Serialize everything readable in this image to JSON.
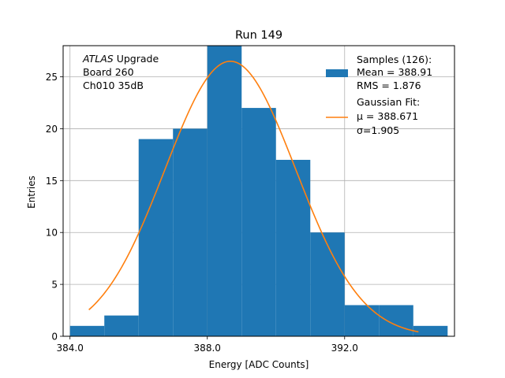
{
  "chart_data": {
    "type": "bar",
    "title": "Run 149",
    "xlabel": "Energy [ADC Counts]",
    "ylabel": "Entries",
    "xlim": [
      383.8,
      395.2
    ],
    "ylim": [
      0,
      28
    ],
    "xticks": [
      384,
      388,
      392
    ],
    "xtick_labels": [
      "384.0",
      "388.0",
      "392.0"
    ],
    "yticks": [
      0,
      5,
      10,
      15,
      20,
      25
    ],
    "ytick_labels": [
      "0",
      "5",
      "10",
      "15",
      "20",
      "25"
    ],
    "grid": true,
    "bins": [
      384,
      385,
      386,
      387,
      388,
      389,
      390,
      391,
      392,
      393,
      394,
      395
    ],
    "counts": [
      1,
      2,
      19,
      20,
      28,
      22,
      17,
      10,
      3,
      3,
      1
    ],
    "fit": {
      "type": "gaussian",
      "mu": 388.671,
      "sigma": 1.905,
      "amplitude": 26.5,
      "x_range": [
        384.55,
        394.15
      ]
    },
    "annotation": {
      "italic": "ATLAS",
      "rest": " Upgrade",
      "line2": " Board 260",
      "line3": " Ch010 35dB"
    },
    "legend": {
      "position": "top-right",
      "entries": [
        {
          "lines": [
            "Samples (126):",
            " Mean = 388.91",
            " RMS = 1.876"
          ],
          "color": "#1f77b4",
          "kind": "patch"
        },
        {
          "lines": [
            "Gaussian Fit:",
            " μ = 388.671",
            " σ=1.905"
          ],
          "color": "#ff7f0e",
          "kind": "line"
        }
      ]
    },
    "colors": {
      "bars": "#1f77b4",
      "fit": "#ff7f0e",
      "grid": "#b0b0b0"
    }
  }
}
